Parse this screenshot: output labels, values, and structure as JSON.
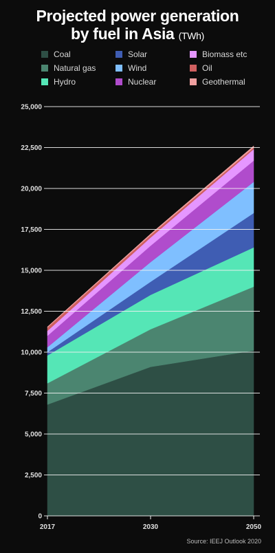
{
  "header": {
    "title_line1": "Projected power generation",
    "title_line2": "by fuel in Asia",
    "title_units": "(TWh)"
  },
  "footer": {
    "source": "Source: IEEJ Outlook 2020"
  },
  "chart_data": {
    "type": "area",
    "stacked": true,
    "title": "Projected power generation by fuel in Asia (TWh)",
    "x": [
      "2017",
      "2030",
      "2050"
    ],
    "ylim": [
      0,
      25000
    ],
    "yticks": [
      "0",
      "2,500",
      "5,000",
      "7,500",
      "10,000",
      "12,500",
      "15,000",
      "17,500",
      "20,000",
      "22,500",
      "25,000"
    ],
    "legend_position": "top",
    "grid": true,
    "series": [
      {
        "name": "Coal",
        "color": "#2e4f45",
        "values": [
          6800,
          9100,
          10100
        ]
      },
      {
        "name": "Natural gas",
        "color": "#4b8570",
        "values": [
          1300,
          2300,
          3900
        ]
      },
      {
        "name": "Hydro",
        "color": "#55e6b6",
        "values": [
          1700,
          2100,
          2400
        ]
      },
      {
        "name": "Solar",
        "color": "#3f5db3",
        "values": [
          200,
          800,
          2100
        ]
      },
      {
        "name": "Wind",
        "color": "#7fbfff",
        "values": [
          300,
          1200,
          1900
        ]
      },
      {
        "name": "Nuclear",
        "color": "#b04ccc",
        "values": [
          700,
          1000,
          1300
        ]
      },
      {
        "name": "Biomass etc",
        "color": "#e596ff",
        "values": [
          300,
          500,
          700
        ]
      },
      {
        "name": "Oil",
        "color": "#d06060",
        "values": [
          200,
          150,
          100
        ]
      },
      {
        "name": "Geothermal",
        "color": "#f0a0a0",
        "values": [
          50,
          70,
          100
        ]
      }
    ]
  }
}
